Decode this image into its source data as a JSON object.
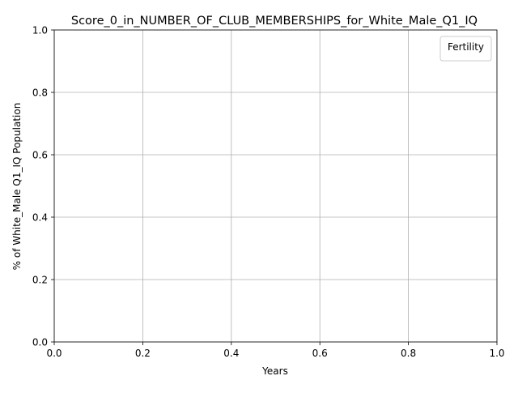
{
  "chart_data": {
    "type": "line",
    "title": "Score_0_in_NUMBER_OF_CLUB_MEMBERSHIPS_for_White_Male_Q1_IQ",
    "xlabel": "Years",
    "ylabel": "% of White_Male Q1_IQ Population",
    "xlim": [
      0.0,
      1.0
    ],
    "ylim": [
      0.0,
      1.0
    ],
    "x_ticks": [
      "0.0",
      "0.2",
      "0.4",
      "0.6",
      "0.8",
      "1.0"
    ],
    "y_ticks": [
      "0.0",
      "0.2",
      "0.4",
      "0.6",
      "0.8",
      "1.0"
    ],
    "grid": true,
    "legend": {
      "title": "Fertility",
      "placement": "top-right",
      "entries": []
    },
    "series": [],
    "colors": {
      "grid": "#b0b0b0",
      "axes": "#000000",
      "background": "#ffffff",
      "legend_border": "#cccccc"
    }
  }
}
